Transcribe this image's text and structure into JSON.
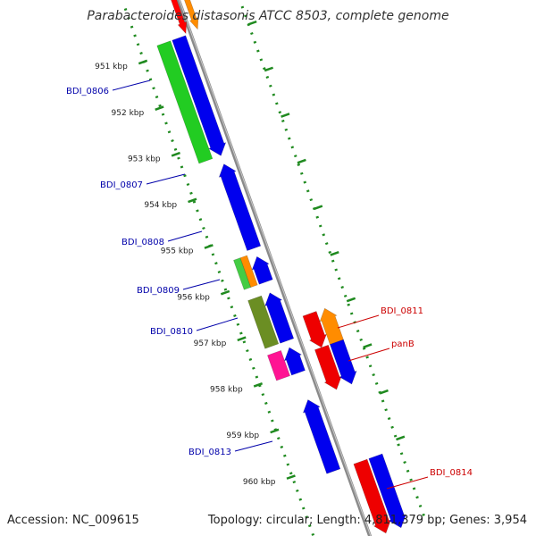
{
  "header": {
    "title": "Parabacteroides distasonis ATCC 8503, complete genome"
  },
  "footer": {
    "accession": "Accession: NC_009615",
    "summary": "Topology: circular; Length: 4,811,379 bp; Genes: 3,954"
  },
  "colors": {
    "backbone": "#8a8a8a",
    "tick": "#1f8a1f",
    "label_blue": "#0000aa",
    "label_red": "#cc0000"
  },
  "ticks": [
    {
      "label": "951 kbp"
    },
    {
      "label": "952 kbp"
    },
    {
      "label": "953 kbp"
    },
    {
      "label": "954 kbp"
    },
    {
      "label": "955 kbp"
    },
    {
      "label": "956 kbp"
    },
    {
      "label": "957 kbp"
    },
    {
      "label": "958 kbp"
    },
    {
      "label": "959 kbp"
    },
    {
      "label": "960 kbp"
    }
  ],
  "gene_labels": [
    {
      "text": "BDI_0806",
      "color": "#0000aa"
    },
    {
      "text": "BDI_0807",
      "color": "#0000aa"
    },
    {
      "text": "BDI_0808",
      "color": "#0000aa"
    },
    {
      "text": "BDI_0809",
      "color": "#0000aa"
    },
    {
      "text": "BDI_0810",
      "color": "#0000aa"
    },
    {
      "text": "BDI_0811",
      "color": "#cc0000"
    },
    {
      "text": "panB",
      "color": "#cc0000"
    },
    {
      "text": "BDI_0813",
      "color": "#0000aa"
    },
    {
      "text": "BDI_0814",
      "color": "#cc0000"
    }
  ],
  "features": [
    {
      "color": "#ff0000"
    },
    {
      "color": "#ff8c00"
    },
    {
      "color": "#22cc22"
    },
    {
      "color": "#0000ee"
    },
    {
      "color": "#0000ee"
    },
    {
      "color": "#44cc44"
    },
    {
      "color": "#ff8c00"
    },
    {
      "color": "#0000ee"
    },
    {
      "color": "#6b8e23"
    },
    {
      "color": "#0000ee"
    },
    {
      "color": "#ff1493"
    },
    {
      "color": "#0000ee"
    },
    {
      "color": "#ee0000"
    },
    {
      "color": "#ff8c00"
    },
    {
      "color": "#ee0000"
    },
    {
      "color": "#0000ee"
    },
    {
      "color": "#0000ee"
    },
    {
      "color": "#ee0000"
    },
    {
      "color": "#0000ee"
    }
  ]
}
